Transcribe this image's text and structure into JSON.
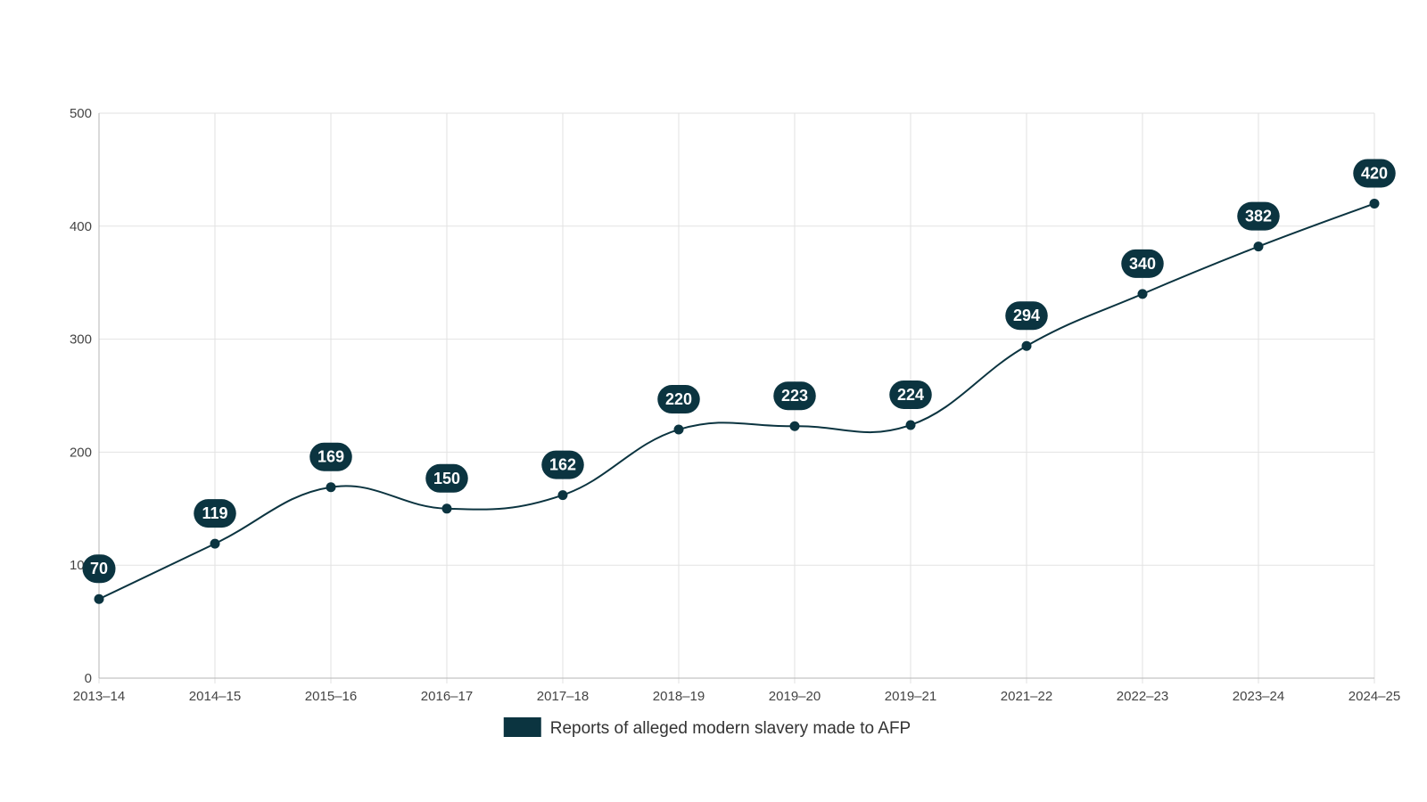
{
  "chart_data": {
    "type": "line",
    "categories": [
      "2013–14",
      "2014–15",
      "2015–16",
      "2016–17",
      "2017–18",
      "2018–19",
      "2019–20",
      "2019–21",
      "2021–22",
      "2022–23",
      "2023–24",
      "2024–25"
    ],
    "series": [
      {
        "name": "Reports of alleged modern slavery made to AFP",
        "values": [
          70,
          119,
          169,
          150,
          162,
          220,
          223,
          224,
          294,
          340,
          382,
          420
        ],
        "color": "#0b3440"
      }
    ],
    "y_ticks": [
      0,
      100,
      200,
      300,
      400,
      500
    ],
    "ylim": [
      0,
      500
    ],
    "grid": true,
    "legend_position": "bottom-center",
    "data_labels": true,
    "smooth": true
  }
}
